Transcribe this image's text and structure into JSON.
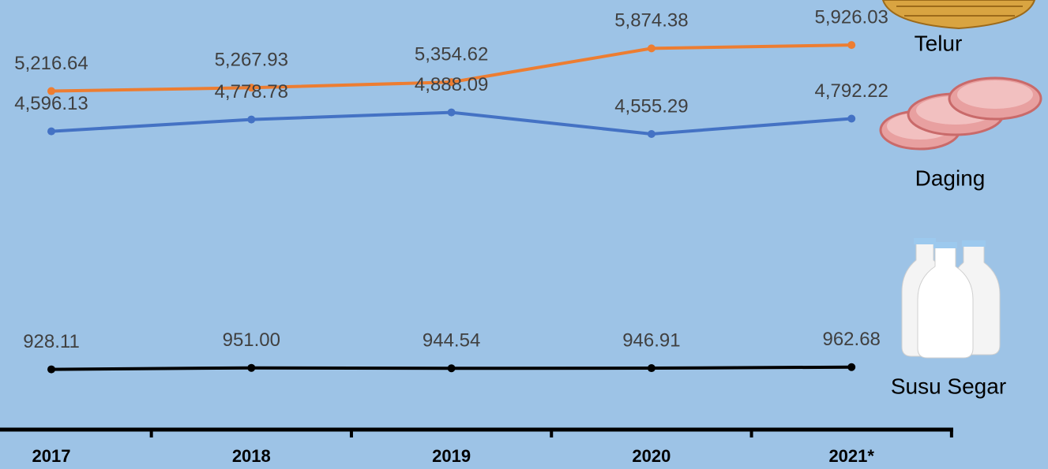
{
  "chart_data": {
    "type": "line",
    "categories": [
      "2017",
      "2018",
      "2019",
      "2020",
      "2021*"
    ],
    "series": [
      {
        "name": "Telur",
        "color": "#ed7d31",
        "values": [
          5216.64,
          5267.93,
          5354.62,
          5874.38,
          5926.03
        ],
        "value_labels": [
          "5,216.64",
          "5,267.93",
          "5,354.62",
          "5,874.38",
          "5,926.03"
        ]
      },
      {
        "name": "Daging",
        "color": "#4472c4",
        "values": [
          4596.13,
          4778.78,
          4888.09,
          4555.29,
          4792.22
        ],
        "value_labels": [
          "4,596.13",
          "4,778.78",
          "4,888.09",
          "4,555.29",
          "4,792.22"
        ]
      },
      {
        "name": "Susu Segar",
        "color": "#000000",
        "values": [
          928.11,
          951.0,
          944.54,
          946.91,
          962.68
        ],
        "value_labels": [
          "928.11",
          "951.00",
          "944.54",
          "946.91",
          "962.68"
        ]
      }
    ],
    "ylim": [
      0,
      6620
    ]
  }
}
